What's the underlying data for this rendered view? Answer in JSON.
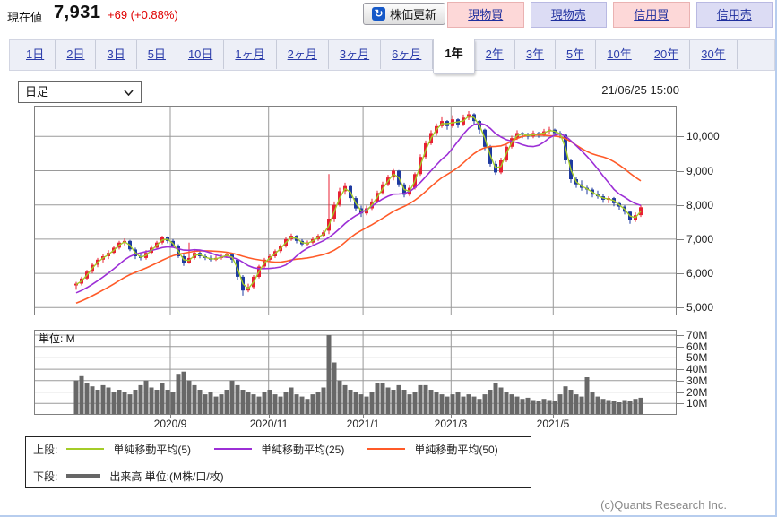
{
  "header": {
    "label_current": "現在値",
    "price": "7,931",
    "change": "+69 (+0.88%)",
    "refresh_button": "株価更新",
    "trade_buttons": [
      {
        "label": "現物買",
        "type": "buy"
      },
      {
        "label": "現物売",
        "type": "sell"
      },
      {
        "label": "信用買",
        "type": "buy"
      },
      {
        "label": "信用売",
        "type": "sell"
      }
    ]
  },
  "period_tabs": {
    "items": [
      "1日",
      "2日",
      "3日",
      "5日",
      "10日",
      "1ヶ月",
      "2ヶ月",
      "3ヶ月",
      "6ヶ月",
      "1年",
      "2年",
      "3年",
      "5年",
      "10年",
      "20年",
      "30年"
    ],
    "active": "1年"
  },
  "toolbar": {
    "candle_type_select": "日足",
    "timestamp": "21/06/25 15:00"
  },
  "chart_data": {
    "type": "candlestick",
    "ylabel": "",
    "price_axis": {
      "values": [
        10000,
        9000,
        8000,
        7000,
        6000,
        5000
      ],
      "labels": [
        "10,000",
        "9,000",
        "8,000",
        "7,000",
        "6,000",
        "5,000"
      ],
      "ylim": [
        4760,
        10900
      ]
    },
    "volume_axis": {
      "values": [
        70,
        60,
        50,
        40,
        30,
        20,
        10
      ],
      "labels": [
        "70M",
        "60M",
        "50M",
        "40M",
        "30M",
        "20M",
        "10M"
      ],
      "ylim": [
        0,
        75
      ]
    },
    "x_axis": {
      "labels": [
        "2020/9",
        "2020/11",
        "2021/1",
        "2021/3",
        "2021/5"
      ],
      "positions": [
        0.212,
        0.365,
        0.512,
        0.649,
        0.808
      ]
    },
    "volume_unit_label": "単位: M",
    "sma_windows": {
      "sma5": 2,
      "sma25": 10,
      "sma50": 20
    },
    "colors": {
      "up": "#e82033",
      "down": "#1e3aa0",
      "sma5": "#a4cc28",
      "sma25": "#9c2fd6",
      "sma50": "#ff5a28",
      "volume": "#686868",
      "grid": "#9a9a9a",
      "border": "#808080"
    },
    "series": {
      "pre_closes": [
        4500,
        4560,
        4620,
        4680,
        4740,
        4800,
        4860,
        4920,
        4980,
        5040,
        5100,
        5160,
        5220,
        5280,
        5340,
        5400,
        5460,
        5520,
        5580,
        5650
      ],
      "candles": [
        [
          5650,
          5750,
          5520,
          5700,
          30
        ],
        [
          5700,
          5900,
          5650,
          5850,
          34
        ],
        [
          5850,
          6100,
          5800,
          6050,
          28
        ],
        [
          6050,
          6300,
          6000,
          6250,
          25
        ],
        [
          6250,
          6450,
          6180,
          6400,
          22
        ],
        [
          6400,
          6560,
          6320,
          6500,
          26
        ],
        [
          6500,
          6680,
          6420,
          6600,
          24
        ],
        [
          6600,
          6800,
          6550,
          6750,
          20
        ],
        [
          6750,
          6950,
          6700,
          6900,
          22
        ],
        [
          6900,
          7020,
          6820,
          6950,
          20
        ],
        [
          6950,
          6980,
          6650,
          6700,
          18
        ],
        [
          6700,
          6750,
          6420,
          6500,
          22
        ],
        [
          6500,
          6580,
          6380,
          6450,
          26
        ],
        [
          6450,
          6680,
          6400,
          6600,
          30
        ],
        [
          6600,
          6820,
          6550,
          6750,
          24
        ],
        [
          6750,
          6950,
          6700,
          6900,
          22
        ],
        [
          6900,
          7100,
          6850,
          7050,
          28
        ],
        [
          7050,
          7080,
          6880,
          6950,
          22
        ],
        [
          6950,
          7000,
          6750,
          6800,
          20
        ],
        [
          6800,
          6850,
          6450,
          6500,
          36
        ],
        [
          6500,
          6550,
          6220,
          6300,
          38
        ],
        [
          6300,
          6900,
          6280,
          6450,
          30
        ],
        [
          6450,
          6700,
          6400,
          6600,
          26
        ],
        [
          6600,
          6650,
          6440,
          6500,
          22
        ],
        [
          6500,
          6560,
          6390,
          6450,
          18
        ],
        [
          6450,
          6520,
          6350,
          6400,
          20
        ],
        [
          6400,
          6520,
          6360,
          6450,
          16
        ],
        [
          6450,
          6580,
          6400,
          6500,
          18
        ],
        [
          6500,
          6620,
          6450,
          6550,
          22
        ],
        [
          6550,
          6580,
          6300,
          6400,
          30
        ],
        [
          6400,
          6420,
          5820,
          5900,
          26
        ],
        [
          5900,
          5950,
          5350,
          5500,
          22
        ],
        [
          5500,
          5700,
          5450,
          5600,
          20
        ],
        [
          5600,
          5950,
          5550,
          5900,
          18
        ],
        [
          5900,
          6250,
          5850,
          6200,
          16
        ],
        [
          6200,
          6450,
          6150,
          6400,
          20
        ],
        [
          6400,
          6560,
          6350,
          6500,
          22
        ],
        [
          6500,
          6700,
          6450,
          6650,
          18
        ],
        [
          6650,
          6850,
          6600,
          6800,
          16
        ],
        [
          6800,
          7050,
          6750,
          7000,
          20
        ],
        [
          7000,
          7160,
          6950,
          7100,
          24
        ],
        [
          7100,
          7120,
          6880,
          6950,
          18
        ],
        [
          6950,
          7000,
          6780,
          6850,
          16
        ],
        [
          6850,
          6960,
          6800,
          6900,
          14
        ],
        [
          6900,
          7050,
          6850,
          7000,
          18
        ],
        [
          7000,
          7150,
          6950,
          7100,
          20
        ],
        [
          7100,
          7260,
          7050,
          7200,
          24
        ],
        [
          7250,
          8900,
          7150,
          7600,
          70
        ],
        [
          7600,
          8100,
          7500,
          8000,
          46
        ],
        [
          8000,
          8500,
          7950,
          8400,
          30
        ],
        [
          8400,
          8650,
          8300,
          8550,
          26
        ],
        [
          8550,
          8580,
          8100,
          8200,
          22
        ],
        [
          8200,
          8250,
          7820,
          7900,
          20
        ],
        [
          7900,
          7980,
          7650,
          7750,
          18
        ],
        [
          7750,
          7980,
          7700,
          7900,
          16
        ],
        [
          7900,
          8180,
          7850,
          8100,
          20
        ],
        [
          8100,
          8420,
          8050,
          8350,
          28
        ],
        [
          8350,
          8680,
          8300,
          8600,
          28
        ],
        [
          8600,
          8880,
          8550,
          8800,
          24
        ],
        [
          8800,
          9050,
          8720,
          9000,
          22
        ],
        [
          9000,
          9020,
          8520,
          8600,
          26
        ],
        [
          8600,
          8650,
          8220,
          8300,
          22
        ],
        [
          8300,
          8580,
          8250,
          8500,
          18
        ],
        [
          8500,
          8950,
          8450,
          8900,
          20
        ],
        [
          8900,
          9480,
          8850,
          9400,
          26
        ],
        [
          9400,
          9880,
          9350,
          9800,
          26
        ],
        [
          9800,
          10180,
          9750,
          10100,
          22
        ],
        [
          10100,
          10380,
          10020,
          10300,
          20
        ],
        [
          10300,
          10560,
          10250,
          10450,
          18
        ],
        [
          10450,
          10480,
          10200,
          10300,
          16
        ],
        [
          10300,
          10620,
          10250,
          10500,
          18
        ],
        [
          10500,
          10530,
          10250,
          10350,
          20
        ],
        [
          10350,
          10640,
          10300,
          10550,
          16
        ],
        [
          10550,
          10740,
          10480,
          10650,
          18
        ],
        [
          10650,
          10680,
          10350,
          10450,
          16
        ],
        [
          10450,
          10480,
          10080,
          10200,
          14
        ],
        [
          10200,
          10230,
          9600,
          9700,
          18
        ],
        [
          9700,
          9750,
          9120,
          9200,
          22
        ],
        [
          9200,
          9280,
          8880,
          8950,
          28
        ],
        [
          8950,
          9380,
          8900,
          9300,
          24
        ],
        [
          9300,
          9760,
          9250,
          9700,
          20
        ],
        [
          9700,
          10020,
          9650,
          9950,
          18
        ],
        [
          9950,
          10180,
          9900,
          10100,
          16
        ],
        [
          10100,
          10130,
          9950,
          10050,
          14
        ],
        [
          10050,
          10110,
          9920,
          10000,
          15
        ],
        [
          10000,
          10170,
          9950,
          10100,
          13
        ],
        [
          10100,
          10140,
          9960,
          10050,
          12
        ],
        [
          10050,
          10220,
          10000,
          10150,
          14
        ],
        [
          10150,
          10280,
          10080,
          10200,
          13
        ],
        [
          10200,
          10230,
          10020,
          10100,
          12
        ],
        [
          10100,
          10160,
          9950,
          10050,
          18
        ],
        [
          10050,
          10080,
          9200,
          9300,
          25
        ],
        [
          9300,
          9350,
          8650,
          8750,
          22
        ],
        [
          8750,
          8820,
          8500,
          8600,
          18
        ],
        [
          8600,
          8720,
          8420,
          8500,
          16
        ],
        [
          8500,
          8560,
          8300,
          8450,
          33
        ],
        [
          8450,
          8500,
          8220,
          8300,
          20
        ],
        [
          8300,
          8420,
          8180,
          8250,
          16
        ],
        [
          8250,
          8320,
          8060,
          8150,
          14
        ],
        [
          8150,
          8250,
          8050,
          8200,
          13
        ],
        [
          8200,
          8230,
          7960,
          8050,
          12
        ],
        [
          8050,
          8100,
          7860,
          7950,
          11
        ],
        [
          7950,
          7990,
          7720,
          7800,
          13
        ],
        [
          7800,
          7830,
          7450,
          7550,
          12
        ],
        [
          7550,
          7780,
          7500,
          7700,
          14
        ],
        [
          7700,
          7990,
          7650,
          7931,
          15
        ]
      ]
    }
  },
  "legend": {
    "upper_label": "上段:",
    "upper_items": [
      {
        "label": "単純移動平均(5)",
        "color": "#a4cc28"
      },
      {
        "label": "単純移動平均(25)",
        "color": "#9c2fd6"
      },
      {
        "label": "単純移動平均(50)",
        "color": "#ff5a28"
      }
    ],
    "lower_label": "下段:",
    "lower_item": {
      "label": "出来高 単位:(M株/口/枚)"
    }
  },
  "footer": {
    "copyright": "(c)Quants Research Inc."
  }
}
